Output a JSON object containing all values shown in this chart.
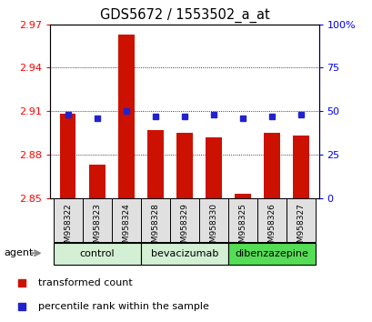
{
  "title": "GDS5672 / 1553502_a_at",
  "samples": [
    "GSM958322",
    "GSM958323",
    "GSM958324",
    "GSM958328",
    "GSM958329",
    "GSM958330",
    "GSM958325",
    "GSM958326",
    "GSM958327"
  ],
  "red_values": [
    2.908,
    2.873,
    2.963,
    2.897,
    2.895,
    2.892,
    2.853,
    2.895,
    2.893
  ],
  "blue_values": [
    48,
    46,
    50,
    47,
    47,
    48,
    46,
    47,
    48
  ],
  "ymin": 2.85,
  "ymax": 2.97,
  "yticks": [
    2.85,
    2.88,
    2.91,
    2.94,
    2.97
  ],
  "right_yticks": [
    0,
    25,
    50,
    75,
    100
  ],
  "bar_color": "#cc1100",
  "dot_color": "#2222cc",
  "bar_width": 0.55,
  "legend_red_label": "transformed count",
  "legend_blue_label": "percentile rank within the sample",
  "group_defs": [
    {
      "label": "control",
      "start": 0,
      "end": 2,
      "color": "#d4f0d4"
    },
    {
      "label": "bevacizumab",
      "start": 3,
      "end": 5,
      "color": "#d4f0d4"
    },
    {
      "label": "dibenzazepine",
      "start": 6,
      "end": 8,
      "color": "#55dd55"
    }
  ],
  "tick_gray": "#cccccc",
  "sample_box_color": "#e0e0e0"
}
